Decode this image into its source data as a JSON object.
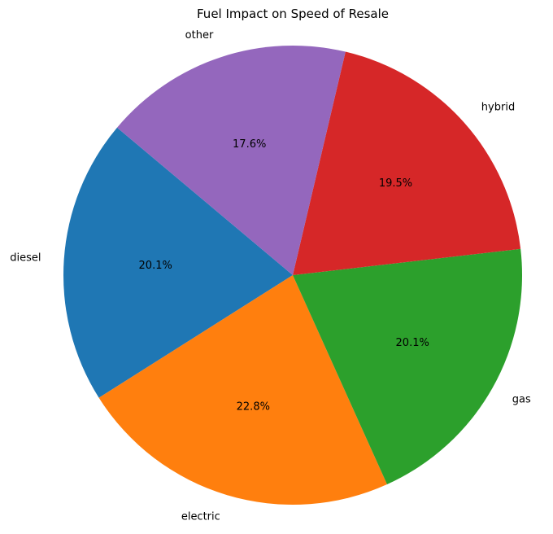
{
  "chart_data": {
    "type": "pie",
    "title": "Fuel Impact on Speed of Resale",
    "categories": [
      "diesel",
      "electric",
      "gas",
      "hybrid",
      "other"
    ],
    "values": [
      20.1,
      22.8,
      20.1,
      19.5,
      17.6
    ],
    "value_labels": [
      "20.1%",
      "22.8%",
      "20.1%",
      "19.5%",
      "17.6%"
    ],
    "colors": [
      "#1f77b4",
      "#ff7f0e",
      "#2ca02c",
      "#d62728",
      "#9467bd"
    ],
    "start_angle_deg": 140,
    "direction": "counterclockwise",
    "legend": "none"
  }
}
